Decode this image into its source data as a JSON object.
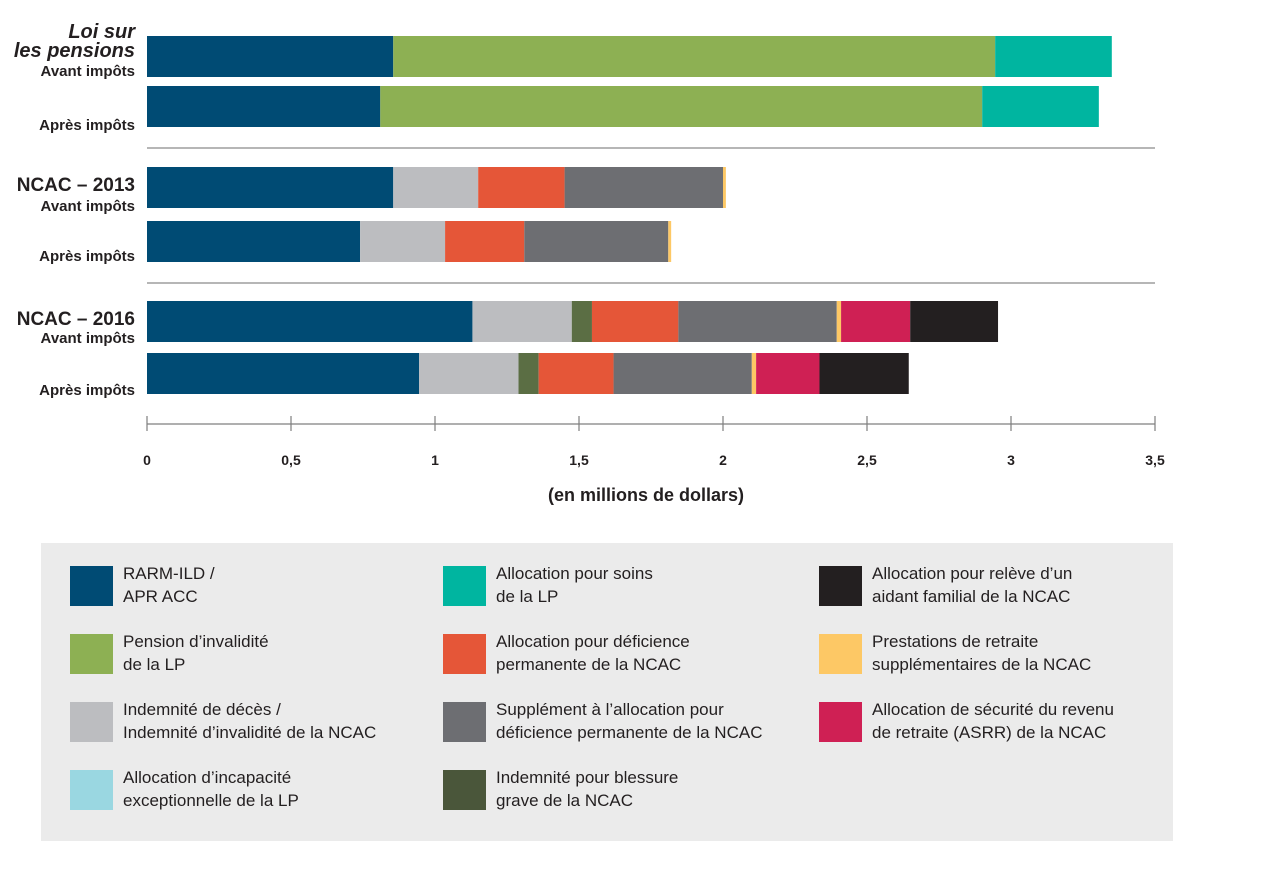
{
  "chart_data": {
    "type": "bar",
    "orientation": "horizontal",
    "stacked": true,
    "xlabel": "(en millions de dollars)",
    "xlim": [
      0,
      3.5
    ],
    "xticks": [
      "0",
      "0,5",
      "1",
      "1,5",
      "2",
      "2,5",
      "3",
      "3,5"
    ],
    "xtick_values": [
      0,
      0.5,
      1,
      1.5,
      2,
      2.5,
      3,
      3.5
    ],
    "groups": [
      {
        "title_lines": [
          "Loi sur",
          "les pensions"
        ],
        "title_italic": true
      },
      {
        "title_lines": [
          "NCAC – 2013"
        ],
        "title_italic": false
      },
      {
        "title_lines": [
          "NCAC – 2016"
        ],
        "title_italic": false
      }
    ],
    "series": [
      {
        "name": "RARM-ILD / APR ACC",
        "color": "#004b74"
      },
      {
        "name": "Pension d’invalidité de la LP",
        "color": "#8db053"
      },
      {
        "name": "Allocation pour soins de la LP",
        "color": "#00b5a0"
      },
      {
        "name": "Indemnité de décès / Indemnité d’invalidité de la NCAC",
        "color": "#bcbdc0"
      },
      {
        "name": "Indemnité pour blessure grave de la NCAC",
        "color": "#5b6e44"
      },
      {
        "name": "Allocation pour déficience permanente de la NCAC",
        "color": "#e55638"
      },
      {
        "name": "Supplément à l’allocation pour déficience permanente de la NCAC",
        "color": "#6d6e72"
      },
      {
        "name": "Prestations de retraite supplémentaires de la NCAC",
        "color": "#fdc865"
      },
      {
        "name": "Allocation de sécurité du revenu de retraite (ASRR) de la NCAC",
        "color": "#cf2054"
      },
      {
        "name": "Allocation pour relève d’un aidant familial de la NCAC",
        "color": "#231f20"
      },
      {
        "name": "Allocation d’incapacité exceptionnelle de la LP",
        "color": "#9ad7e1"
      }
    ],
    "bars": [
      {
        "group": 0,
        "label": "Avant impôts",
        "segments": [
          {
            "series": "RARM-ILD / APR ACC",
            "value": 0.855
          },
          {
            "series": "Pension d’invalidité de la LP",
            "value": 2.09
          },
          {
            "series": "Allocation pour soins de la LP",
            "value": 0.405
          }
        ]
      },
      {
        "group": 0,
        "label": "Après impôts",
        "segments": [
          {
            "series": "RARM-ILD / APR ACC",
            "value": 0.81
          },
          {
            "series": "Pension d’invalidité de la LP",
            "value": 2.09
          },
          {
            "series": "Allocation pour soins de la LP",
            "value": 0.405
          }
        ]
      },
      {
        "group": 1,
        "label": "Avant impôts",
        "segments": [
          {
            "series": "RARM-ILD / APR ACC",
            "value": 0.855
          },
          {
            "series": "Indemnité de décès / Indemnité d’invalidité de la NCAC",
            "value": 0.295
          },
          {
            "series": "Allocation pour déficience permanente de la NCAC",
            "value": 0.3
          },
          {
            "series": "Supplément à l’allocation pour déficience permanente de la NCAC",
            "value": 0.55
          },
          {
            "series": "Prestations de retraite supplémentaires de la NCAC",
            "value": 0.01
          }
        ]
      },
      {
        "group": 1,
        "label": "Après impôts",
        "segments": [
          {
            "series": "RARM-ILD / APR ACC",
            "value": 0.74
          },
          {
            "series": "Indemnité de décès / Indemnité d’invalidité de la NCAC",
            "value": 0.295
          },
          {
            "series": "Allocation pour déficience permanente de la NCAC",
            "value": 0.275
          },
          {
            "series": "Supplément à l’allocation pour déficience permanente de la NCAC",
            "value": 0.5
          },
          {
            "series": "Prestations de retraite supplémentaires de la NCAC",
            "value": 0.01
          }
        ]
      },
      {
        "group": 2,
        "label": "Avant impôts",
        "segments": [
          {
            "series": "RARM-ILD / APR ACC",
            "value": 1.13
          },
          {
            "series": "Indemnité de décès / Indemnité d’invalidité de la NCAC",
            "value": 0.345
          },
          {
            "series": "Indemnité pour blessure grave de la NCAC",
            "value": 0.07
          },
          {
            "series": "Allocation pour déficience permanente de la NCAC",
            "value": 0.3
          },
          {
            "series": "Supplément à l’allocation pour déficience permanente de la NCAC",
            "value": 0.55
          },
          {
            "series": "Prestations de retraite supplémentaires de la NCAC",
            "value": 0.015
          },
          {
            "series": "Allocation de sécurité du revenu de retraite (ASRR) de la NCAC",
            "value": 0.24
          },
          {
            "series": "Allocation pour relève d’un aidant familial de la NCAC",
            "value": 0.305
          }
        ]
      },
      {
        "group": 2,
        "label": "Après impôts",
        "segments": [
          {
            "series": "RARM-ILD / APR ACC",
            "value": 0.945
          },
          {
            "series": "Indemnité de décès / Indemnité d’invalidité de la NCAC",
            "value": 0.345
          },
          {
            "series": "Indemnité pour blessure grave de la NCAC",
            "value": 0.07
          },
          {
            "series": "Allocation pour déficience permanente de la NCAC",
            "value": 0.26
          },
          {
            "series": "Supplément à l’allocation pour déficience permanente de la NCAC",
            "value": 0.48
          },
          {
            "series": "Prestations de retraite supplémentaires de la NCAC",
            "value": 0.015
          },
          {
            "series": "Allocation de sécurité du revenu de retraite (ASRR) de la NCAC",
            "value": 0.22
          },
          {
            "series": "Allocation pour relève d’un aidant familial de la NCAC",
            "value": 0.31
          }
        ]
      }
    ]
  },
  "legend": {
    "items": [
      {
        "label": "RARM-ILD /\nAPR ACC",
        "color": "#004b74"
      },
      {
        "label": "Pension d’invalidité\nde la LP",
        "color": "#8db053"
      },
      {
        "label": "Indemnité de décès /\nIndemnité d’invalidité de la NCAC",
        "color": "#bcbdc0"
      },
      {
        "label": "Allocation d’incapacité\nexceptionnelle de la LP",
        "color": "#9ad7e1"
      },
      {
        "label": "Allocation pour soins\nde la LP",
        "color": "#00b5a0"
      },
      {
        "label": "Allocation pour déficience\npermanente de la NCAC",
        "color": "#e55638"
      },
      {
        "label": "Supplément à l’allocation pour\ndéficience permanente de la NCAC",
        "color": "#6d6e72"
      },
      {
        "label": "Indemnité pour blessure\ngrave de la NCAC",
        "color": "#4a563a"
      },
      {
        "label": "Allocation pour relève d’un\naidant familial de la NCAC",
        "color": "#231f20"
      },
      {
        "label": "Prestations de retraite\nsupplémentaires de la NCAC",
        "color": "#fdc865"
      },
      {
        "label": "Allocation de sécurité du revenu\nde retraite (ASRR) de la NCAC",
        "color": "#cf2054"
      }
    ]
  }
}
